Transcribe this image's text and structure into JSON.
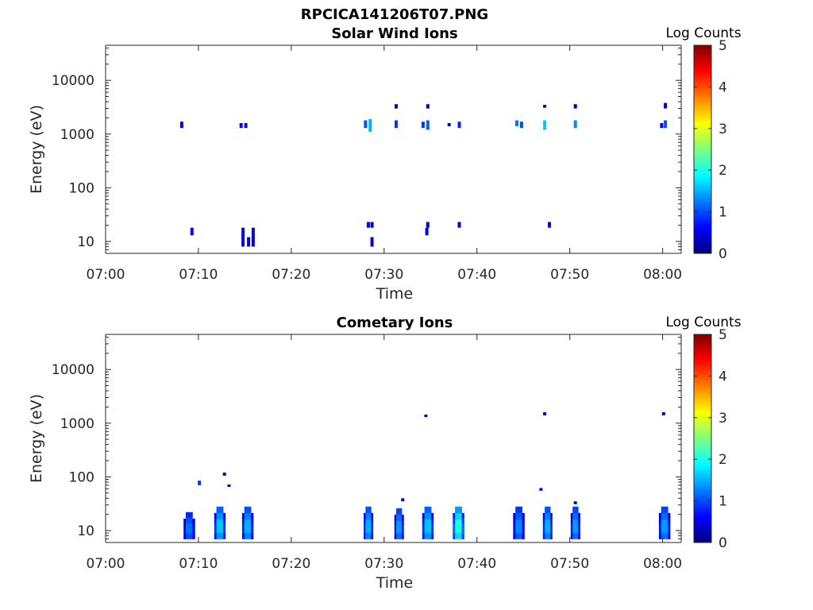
{
  "figure_title": "RPCICA141206T07.PNG",
  "colors": {
    "colormap": [
      "#00007f",
      "#0000ff",
      "#007fff",
      "#00ffff",
      "#7fff7f",
      "#ffff00",
      "#ff7f00",
      "#ff0000",
      "#7f0000"
    ],
    "axis": "#262626"
  },
  "chart_data": [
    {
      "type": "heatmap",
      "title": "Solar Wind Ions",
      "xlabel": "Time",
      "ylabel": "Energy (eV)",
      "yscale": "log",
      "x_ticks": [
        "07:00",
        "07:10",
        "07:20",
        "07:30",
        "07:40",
        "07:50",
        "08:00"
      ],
      "y_ticks": [
        "10",
        "100",
        "1000",
        "10000"
      ],
      "xlim": [
        "07:00",
        "08:02"
      ],
      "ylim": [
        6,
        45000
      ],
      "colorbar": {
        "label": "Log Counts",
        "range": [
          0,
          5
        ],
        "ticks": [
          "0",
          "1",
          "2",
          "3",
          "4",
          "5"
        ]
      },
      "cells": [
        {
          "t": "07:08.2",
          "e0": 1300,
          "e1": 1700,
          "v": 0.5
        },
        {
          "t": "07:14.6",
          "e0": 1300,
          "e1": 1600,
          "v": 0.6
        },
        {
          "t": "07:15.1",
          "e0": 1300,
          "e1": 1600,
          "v": 0.6
        },
        {
          "t": "07:28.0",
          "e0": 1300,
          "e1": 1800,
          "v": 1.0
        },
        {
          "t": "07:28.5",
          "e0": 1100,
          "e1": 1900,
          "v": 1.5
        },
        {
          "t": "07:31.3",
          "e0": 1300,
          "e1": 1800,
          "v": 0.9
        },
        {
          "t": "07:31.3",
          "e0": 3000,
          "e1": 3600,
          "v": 0.3
        },
        {
          "t": "07:34.2",
          "e0": 1300,
          "e1": 1700,
          "v": 0.9
        },
        {
          "t": "07:34.7",
          "e0": 1200,
          "e1": 1800,
          "v": 1.1
        },
        {
          "t": "07:34.7",
          "e0": 3000,
          "e1": 3600,
          "v": 0.3
        },
        {
          "t": "07:37.0",
          "e0": 1400,
          "e1": 1600,
          "v": 0.3
        },
        {
          "t": "07:38.1",
          "e0": 1300,
          "e1": 1700,
          "v": 0.8
        },
        {
          "t": "07:44.3",
          "e0": 1400,
          "e1": 1800,
          "v": 1.2
        },
        {
          "t": "07:44.8",
          "e0": 1300,
          "e1": 1700,
          "v": 1.0
        },
        {
          "t": "07:47.3",
          "e0": 1200,
          "e1": 1800,
          "v": 1.6
        },
        {
          "t": "07:47.3",
          "e0": 3100,
          "e1": 3500,
          "v": 0.3
        },
        {
          "t": "07:50.6",
          "e0": 1300,
          "e1": 1800,
          "v": 1.3
        },
        {
          "t": "07:50.6",
          "e0": 3000,
          "e1": 3600,
          "v": 0.3
        },
        {
          "t": "07:59.9",
          "e0": 1300,
          "e1": 1600,
          "v": 0.6
        },
        {
          "t": "08:00.3",
          "e0": 1300,
          "e1": 1800,
          "v": 1.0
        },
        {
          "t": "08:00.3",
          "e0": 3000,
          "e1": 3800,
          "v": 0.3
        },
        {
          "t": "07:09.3",
          "e0": 13,
          "e1": 18,
          "v": 0.6
        },
        {
          "t": "07:14.8",
          "e0": 8,
          "e1": 18,
          "v": 0.5
        },
        {
          "t": "07:15.4",
          "e0": 8,
          "e1": 12,
          "v": 0.5
        },
        {
          "t": "07:15.9",
          "e0": 8,
          "e1": 18,
          "v": 0.5
        },
        {
          "t": "07:28.3",
          "e0": 18,
          "e1": 23,
          "v": 0.5
        },
        {
          "t": "07:28.7",
          "e0": 18,
          "e1": 23,
          "v": 0.5
        },
        {
          "t": "07:28.7",
          "e0": 8,
          "e1": 12,
          "v": 0.5
        },
        {
          "t": "07:34.6",
          "e0": 13,
          "e1": 18,
          "v": 0.6
        },
        {
          "t": "07:34.7",
          "e0": 18,
          "e1": 23,
          "v": 0.5
        },
        {
          "t": "07:38.1",
          "e0": 18,
          "e1": 23,
          "v": 0.5
        },
        {
          "t": "07:47.8",
          "e0": 18,
          "e1": 23,
          "v": 0.5
        }
      ]
    },
    {
      "type": "heatmap",
      "title": "Cometary Ions",
      "xlabel": "Time",
      "ylabel": "Energy (eV)",
      "yscale": "log",
      "x_ticks": [
        "07:00",
        "07:10",
        "07:20",
        "07:30",
        "07:40",
        "07:50",
        "08:00"
      ],
      "y_ticks": [
        "10",
        "100",
        "1000",
        "10000"
      ],
      "xlim": [
        "07:00",
        "08:02"
      ],
      "ylim": [
        6,
        45000
      ],
      "colorbar": {
        "label": "Log Counts",
        "range": [
          0,
          5
        ],
        "ticks": [
          "0",
          "1",
          "2",
          "3",
          "4",
          "5"
        ]
      },
      "bursts": [
        {
          "t": "07:09.0",
          "e0": 7,
          "e1": 22,
          "v": 1.1,
          "w": 1.2
        },
        {
          "t": "07:12.3",
          "e0": 7,
          "e1": 28,
          "v": 1.5,
          "w": 1.2
        },
        {
          "t": "07:15.3",
          "e0": 7,
          "e1": 28,
          "v": 1.4,
          "w": 1.2
        },
        {
          "t": "07:28.3",
          "e0": 7,
          "e1": 28,
          "v": 1.4,
          "w": 1.0
        },
        {
          "t": "07:31.6",
          "e0": 7,
          "e1": 26,
          "v": 1.3,
          "w": 1.0
        },
        {
          "t": "07:34.7",
          "e0": 7,
          "e1": 28,
          "v": 1.5,
          "w": 1.2
        },
        {
          "t": "07:38.0",
          "e0": 7,
          "e1": 28,
          "v": 1.9,
          "w": 1.2
        },
        {
          "t": "07:44.5",
          "e0": 7,
          "e1": 28,
          "v": 1.2,
          "w": 1.2
        },
        {
          "t": "07:47.6",
          "e0": 7,
          "e1": 28,
          "v": 1.4,
          "w": 1.0
        },
        {
          "t": "07:50.6",
          "e0": 7,
          "e1": 28,
          "v": 1.3,
          "w": 1.0
        },
        {
          "t": "08:00.2",
          "e0": 7,
          "e1": 28,
          "v": 1.3,
          "w": 1.2
        }
      ],
      "cells": [
        {
          "t": "07:10.1",
          "e0": 70,
          "e1": 85,
          "v": 0.9
        },
        {
          "t": "07:12.8",
          "e0": 105,
          "e1": 120,
          "v": 0.4
        },
        {
          "t": "07:13.3",
          "e0": 65,
          "e1": 72,
          "v": 0.3
        },
        {
          "t": "07:32.0",
          "e0": 35,
          "e1": 40,
          "v": 0.4
        },
        {
          "t": "07:34.5",
          "e0": 1300,
          "e1": 1450,
          "v": 0.3
        },
        {
          "t": "07:46.9",
          "e0": 55,
          "e1": 62,
          "v": 0.4
        },
        {
          "t": "07:47.3",
          "e0": 1400,
          "e1": 1600,
          "v": 0.3
        },
        {
          "t": "07:50.6",
          "e0": 31,
          "e1": 35,
          "v": 0.4
        },
        {
          "t": "08:00.1",
          "e0": 1400,
          "e1": 1600,
          "v": 0.3
        }
      ]
    }
  ]
}
